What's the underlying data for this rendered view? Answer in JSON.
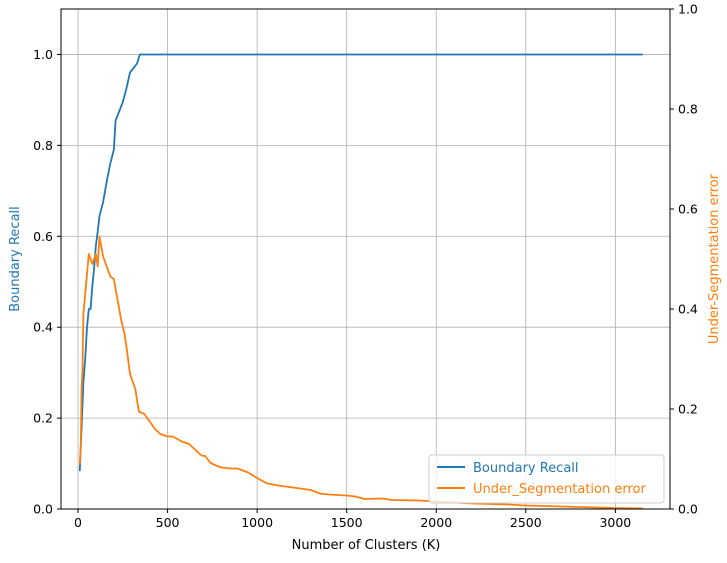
{
  "chart_data": {
    "type": "line",
    "title": "",
    "xlabel": "Number of Clusters (K)",
    "ylabel": "Boundary Recall",
    "ylabel_right": "Under-Segmentation error",
    "xlim": [
      -95,
      3305
    ],
    "ylim": [
      0,
      1.1
    ],
    "ylim_right": [
      0,
      1.0
    ],
    "xticks": [
      "0",
      "500",
      "1000",
      "1500",
      "2000",
      "2500",
      "3000"
    ],
    "yticks": [
      "0.0",
      "0.2",
      "0.4",
      "0.6",
      "0.8",
      "1.0"
    ],
    "yticks_right": [
      "0.0",
      "0.2",
      "0.4",
      "0.6",
      "0.8",
      "1.0"
    ],
    "grid": true,
    "legend_position": "lower right",
    "series": [
      {
        "name": "Boundary Recall",
        "axis": "left",
        "color": "#1f77b4",
        "points": [
          [
            10,
            0.085
          ],
          [
            20,
            0.18
          ],
          [
            30,
            0.28
          ],
          [
            40,
            0.33
          ],
          [
            50,
            0.4
          ],
          [
            60,
            0.44
          ],
          [
            70,
            0.44
          ],
          [
            80,
            0.49
          ],
          [
            90,
            0.53
          ],
          [
            100,
            0.58
          ],
          [
            110,
            0.61
          ],
          [
            120,
            0.645
          ],
          [
            140,
            0.675
          ],
          [
            160,
            0.72
          ],
          [
            180,
            0.76
          ],
          [
            200,
            0.79
          ],
          [
            210,
            0.855
          ],
          [
            230,
            0.875
          ],
          [
            250,
            0.895
          ],
          [
            270,
            0.925
          ],
          [
            290,
            0.96
          ],
          [
            310,
            0.97
          ],
          [
            330,
            0.98
          ],
          [
            345,
            1.0
          ],
          [
            500,
            1.0
          ],
          [
            1000,
            1.0
          ],
          [
            1500,
            1.0
          ],
          [
            2000,
            1.0
          ],
          [
            2500,
            1.0
          ],
          [
            3000,
            1.0
          ],
          [
            3150,
            1.0
          ]
        ]
      },
      {
        "name": "Under_Segmentation error",
        "axis": "right",
        "color": "#ff7f0e",
        "points": [
          [
            10,
            0.09
          ],
          [
            15,
            0.12
          ],
          [
            20,
            0.24
          ],
          [
            25,
            0.28
          ],
          [
            30,
            0.39
          ],
          [
            40,
            0.43
          ],
          [
            50,
            0.47
          ],
          [
            60,
            0.51
          ],
          [
            80,
            0.49
          ],
          [
            100,
            0.51
          ],
          [
            110,
            0.485
          ],
          [
            120,
            0.545
          ],
          [
            140,
            0.505
          ],
          [
            160,
            0.485
          ],
          [
            180,
            0.465
          ],
          [
            200,
            0.46
          ],
          [
            220,
            0.42
          ],
          [
            240,
            0.38
          ],
          [
            260,
            0.35
          ],
          [
            270,
            0.325
          ],
          [
            290,
            0.27
          ],
          [
            320,
            0.24
          ],
          [
            340,
            0.195
          ],
          [
            370,
            0.19
          ],
          [
            400,
            0.175
          ],
          [
            430,
            0.16
          ],
          [
            460,
            0.15
          ],
          [
            500,
            0.145
          ],
          [
            530,
            0.145
          ],
          [
            580,
            0.135
          ],
          [
            620,
            0.13
          ],
          [
            650,
            0.12
          ],
          [
            690,
            0.107
          ],
          [
            710,
            0.106
          ],
          [
            740,
            0.092
          ],
          [
            770,
            0.087
          ],
          [
            800,
            0.083
          ],
          [
            850,
            0.081
          ],
          [
            890,
            0.081
          ],
          [
            950,
            0.073
          ],
          [
            1000,
            0.062
          ],
          [
            1050,
            0.052
          ],
          [
            1100,
            0.048
          ],
          [
            1200,
            0.043
          ],
          [
            1300,
            0.038
          ],
          [
            1350,
            0.031
          ],
          [
            1400,
            0.029
          ],
          [
            1500,
            0.027
          ],
          [
            1550,
            0.025
          ],
          [
            1600,
            0.02
          ],
          [
            1700,
            0.021
          ],
          [
            1750,
            0.018
          ],
          [
            1900,
            0.017
          ],
          [
            2000,
            0.015
          ],
          [
            2100,
            0.013
          ],
          [
            2200,
            0.011
          ],
          [
            2300,
            0.01
          ],
          [
            2400,
            0.009
          ],
          [
            2500,
            0.007
          ],
          [
            2600,
            0.006
          ],
          [
            2700,
            0.005
          ],
          [
            2800,
            0.004
          ],
          [
            2900,
            0.003
          ],
          [
            3000,
            0.002
          ],
          [
            3150,
            0.001
          ]
        ]
      }
    ]
  }
}
